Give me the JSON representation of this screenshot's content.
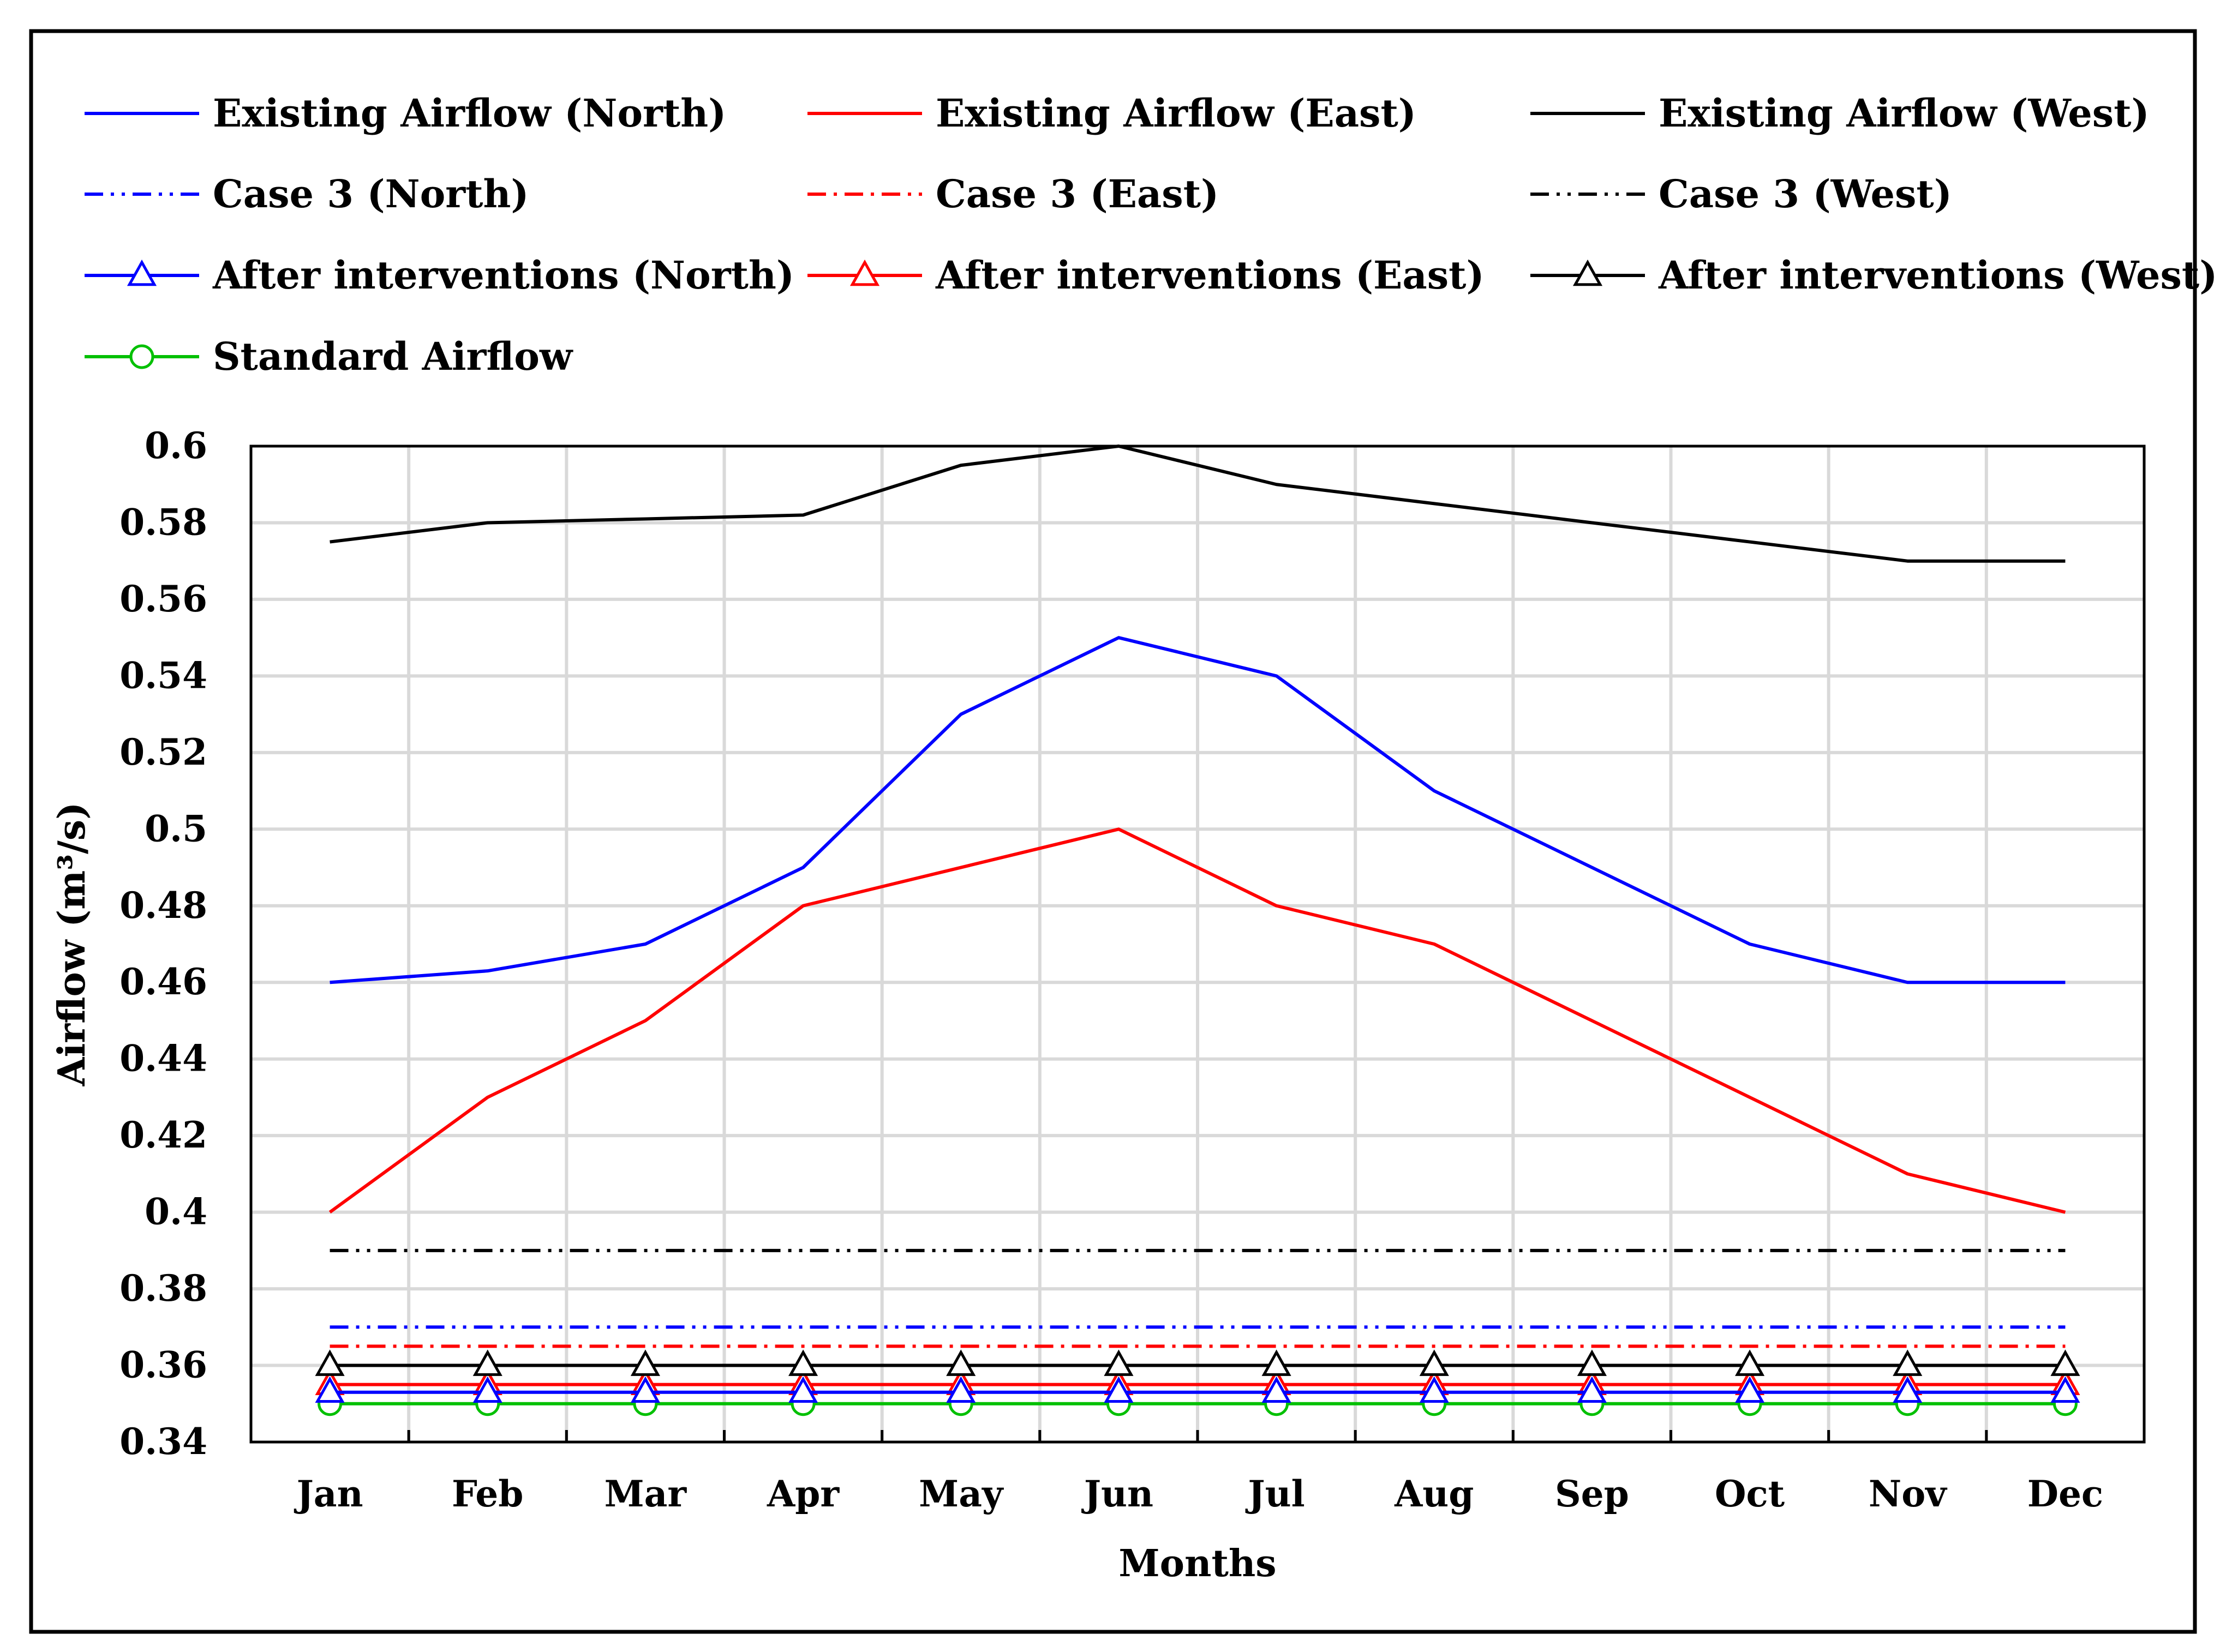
{
  "chart_data": {
    "type": "line",
    "title": "",
    "xlabel": "Months",
    "ylabel": "Airflow (m³/s)",
    "ylim": [
      0.34,
      0.6
    ],
    "ytick_step": 0.02,
    "yticks": [
      "0.34",
      "0.36",
      "0.38",
      "0.4",
      "0.42",
      "0.44",
      "0.46",
      "0.48",
      "0.5",
      "0.52",
      "0.54",
      "0.56",
      "0.58",
      "0.6"
    ],
    "categories": [
      "Jan",
      "Feb",
      "Mar",
      "Apr",
      "May",
      "Jun",
      "Jul",
      "Aug",
      "Sep",
      "Oct",
      "Nov",
      "Dec"
    ],
    "grid": true,
    "legend_position": "top",
    "series": [
      {
        "name": "Existing Airflow (North)",
        "color": "#0000ff",
        "dash": "solid",
        "marker": "none",
        "values": [
          0.46,
          0.463,
          0.47,
          0.49,
          0.53,
          0.55,
          0.54,
          0.51,
          0.49,
          0.47,
          0.46,
          0.46
        ]
      },
      {
        "name": "Existing Airflow (East)",
        "color": "#ff0000",
        "dash": "solid",
        "marker": "none",
        "values": [
          0.4,
          0.43,
          0.45,
          0.48,
          0.49,
          0.5,
          0.48,
          0.47,
          0.45,
          0.43,
          0.41,
          0.4
        ]
      },
      {
        "name": "Existing Airflow (West)",
        "color": "#000000",
        "dash": "solid",
        "marker": "none",
        "values": [
          0.575,
          0.58,
          0.581,
          0.582,
          0.595,
          0.6,
          0.59,
          0.585,
          0.58,
          0.575,
          0.57,
          0.57
        ]
      },
      {
        "name": "Case 3 (North)",
        "color": "#0000ff",
        "dash": "dashdotdot",
        "marker": "none",
        "values": [
          0.37,
          0.37,
          0.37,
          0.37,
          0.37,
          0.37,
          0.37,
          0.37,
          0.37,
          0.37,
          0.37,
          0.37
        ]
      },
      {
        "name": "Case 3 (East)",
        "color": "#ff0000",
        "dash": "dashdot",
        "marker": "none",
        "values": [
          0.365,
          0.365,
          0.365,
          0.365,
          0.365,
          0.365,
          0.365,
          0.365,
          0.365,
          0.365,
          0.365,
          0.365
        ]
      },
      {
        "name": "Case 3 (West)",
        "color": "#000000",
        "dash": "dashdotdot",
        "marker": "none",
        "values": [
          0.39,
          0.39,
          0.39,
          0.39,
          0.39,
          0.39,
          0.39,
          0.39,
          0.39,
          0.39,
          0.39,
          0.39
        ]
      },
      {
        "name": "After interventions (North)",
        "color": "#0000ff",
        "dash": "solid",
        "marker": "triangle",
        "values": [
          0.353,
          0.353,
          0.353,
          0.353,
          0.353,
          0.353,
          0.353,
          0.353,
          0.353,
          0.353,
          0.353,
          0.353
        ]
      },
      {
        "name": "After interventions (East)",
        "color": "#ff0000",
        "dash": "solid",
        "marker": "triangle",
        "values": [
          0.355,
          0.355,
          0.355,
          0.355,
          0.355,
          0.355,
          0.355,
          0.355,
          0.355,
          0.355,
          0.355,
          0.355
        ]
      },
      {
        "name": "After interventions (West)",
        "color": "#000000",
        "dash": "solid",
        "marker": "triangle",
        "values": [
          0.36,
          0.36,
          0.36,
          0.36,
          0.36,
          0.36,
          0.36,
          0.36,
          0.36,
          0.36,
          0.36,
          0.36
        ]
      },
      {
        "name": "Standard Airflow",
        "color": "#00c000",
        "dash": "solid",
        "marker": "circle",
        "values": [
          0.35,
          0.35,
          0.35,
          0.35,
          0.35,
          0.35,
          0.35,
          0.35,
          0.35,
          0.35,
          0.35,
          0.35
        ]
      }
    ],
    "draw_order": [
      3,
      4,
      5,
      7,
      8,
      9,
      6,
      0,
      1,
      2
    ]
  }
}
